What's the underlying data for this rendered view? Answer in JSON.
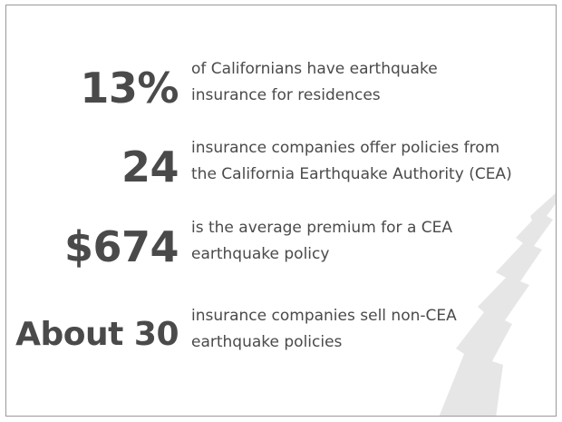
{
  "colors": {
    "text": "#4a4a4a",
    "border": "#9a9a9a",
    "crack": "#e6e6e6"
  },
  "stats": [
    {
      "value": "13%",
      "line1": "of Californians have earthquake",
      "line2": "insurance for residences"
    },
    {
      "value": "24",
      "line1": "insurance companies offer policies from",
      "line2": "the California Earthquake Authority (CEA)"
    },
    {
      "value": "$674",
      "line1": "is the average premium for a CEA",
      "line2": "earthquake policy"
    },
    {
      "value": "About 30",
      "line1": "insurance companies sell non-CEA",
      "line2": "earthquake policies"
    }
  ]
}
